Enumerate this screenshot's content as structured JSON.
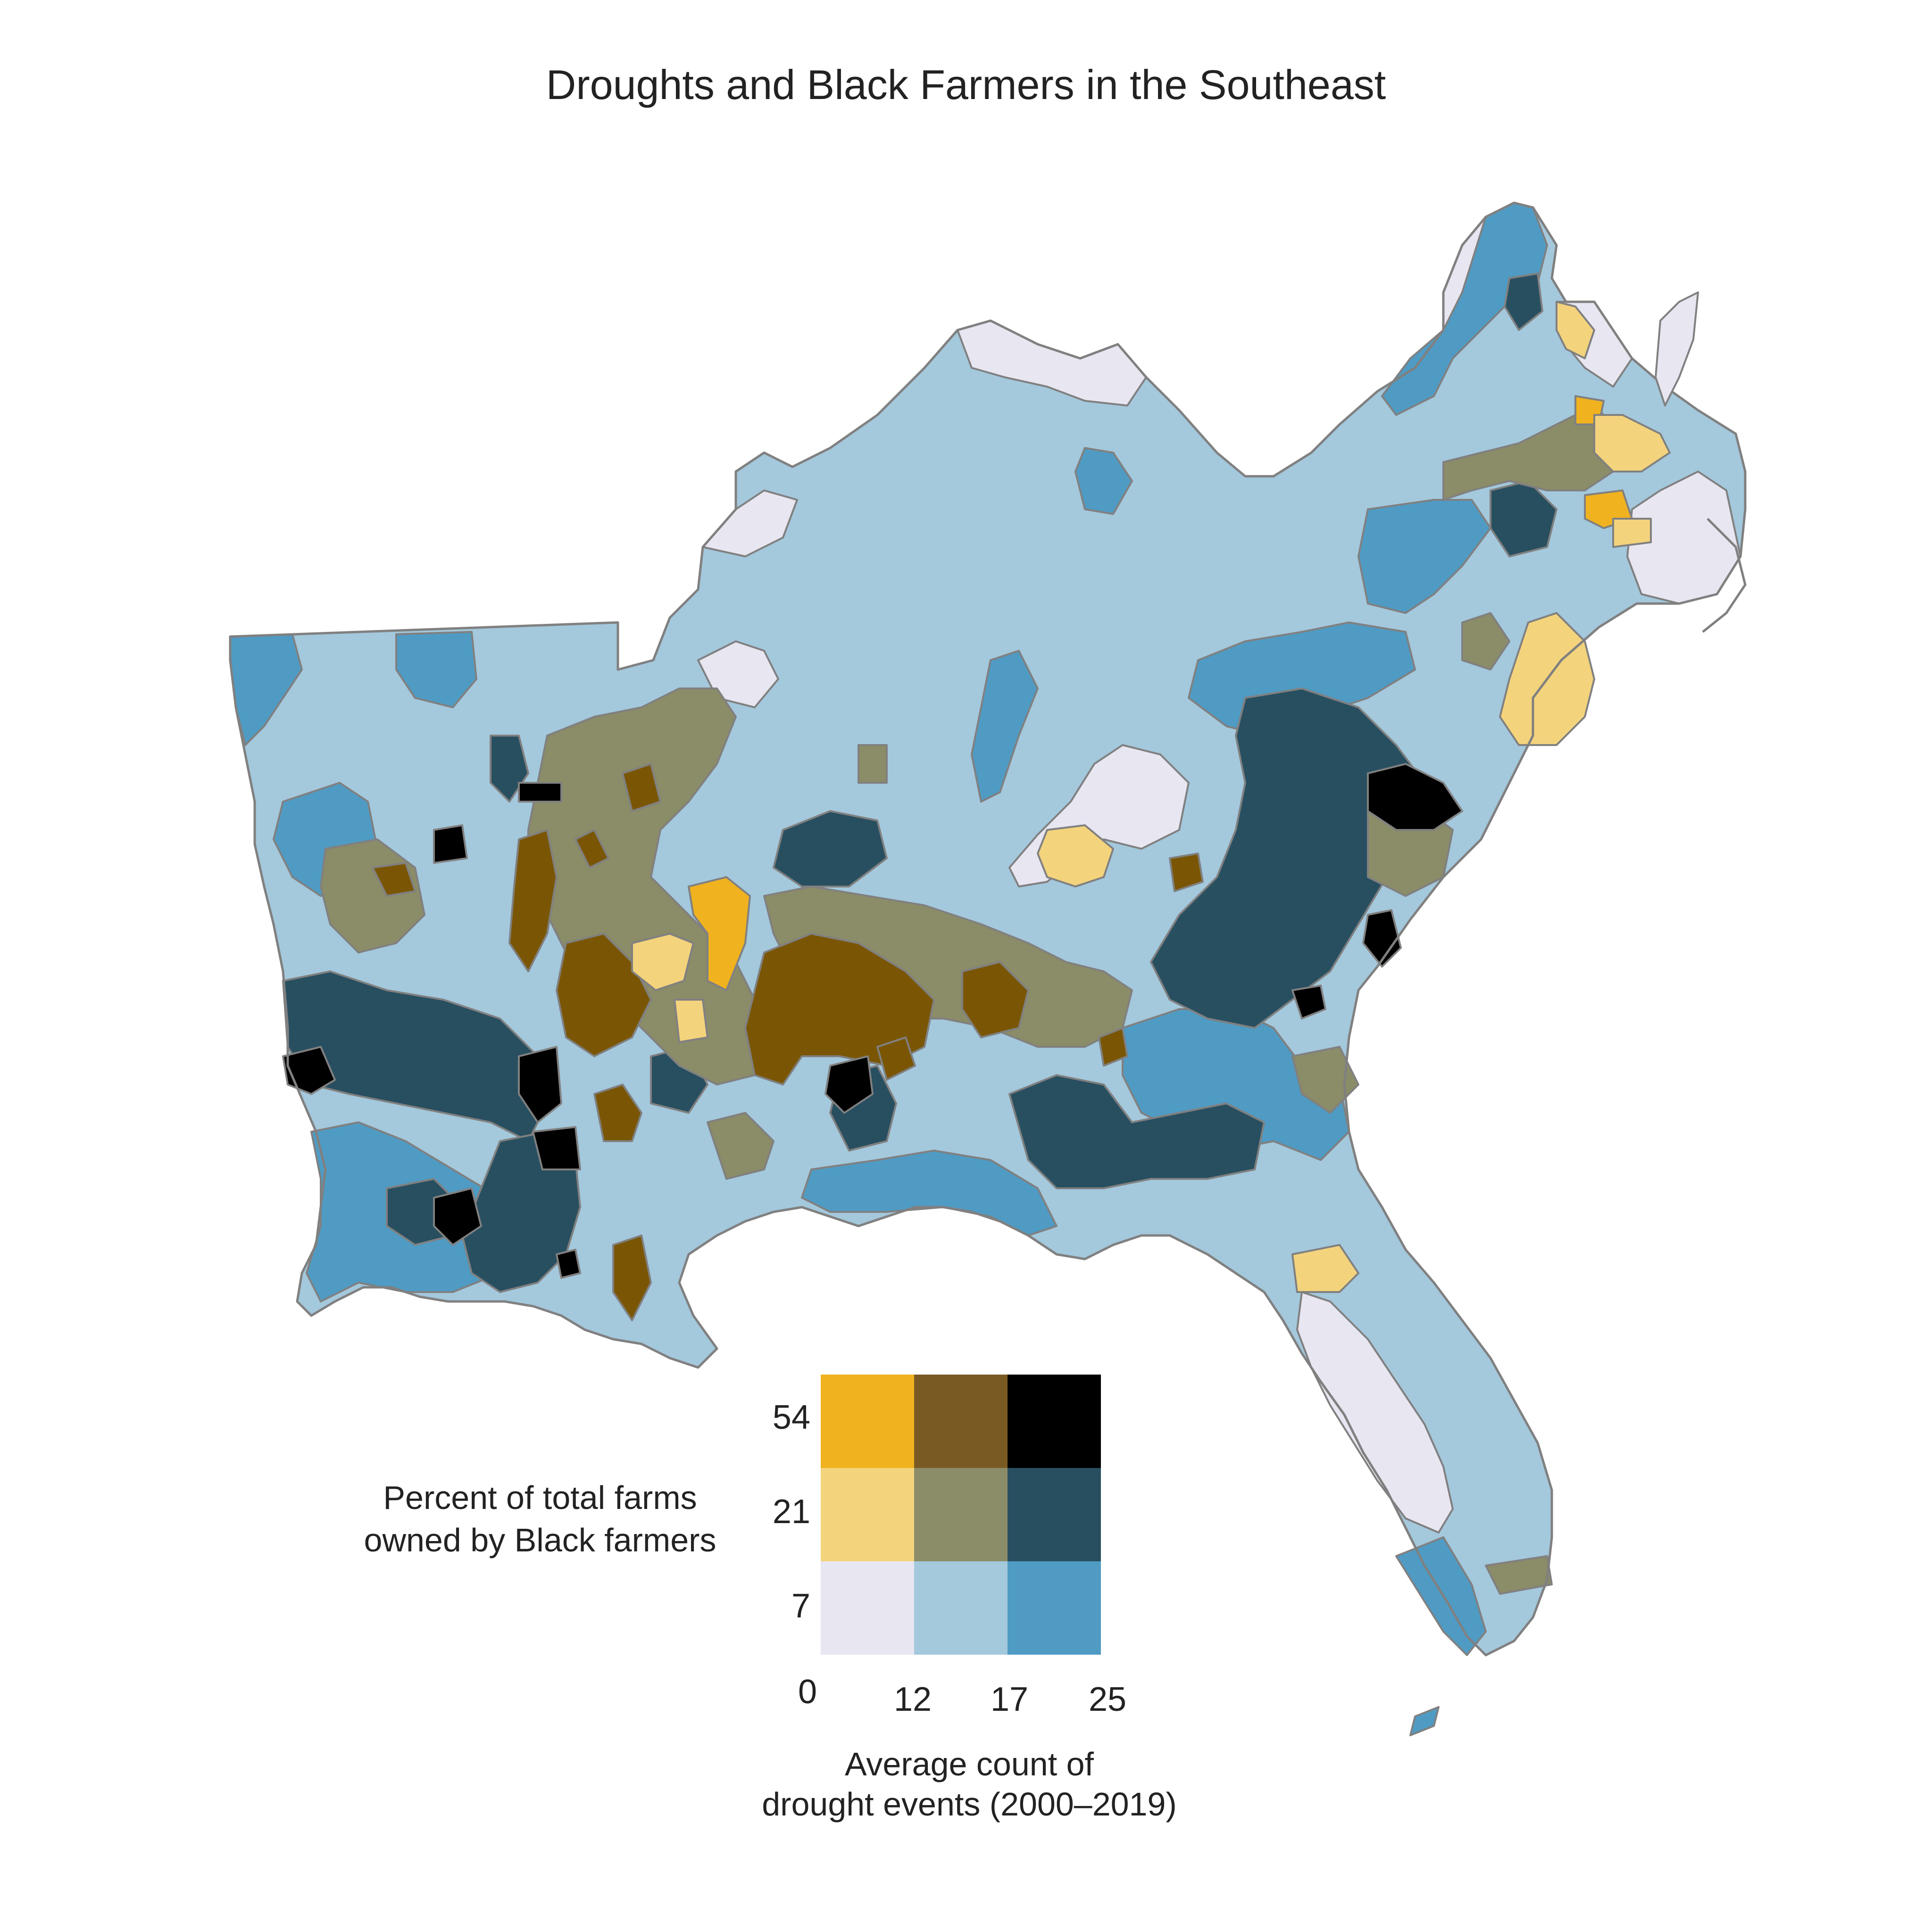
{
  "title": "Droughts and Black Farmers in the Southeast",
  "colors": {
    "bivariate_legend_rows_top_to_bottom": [
      [
        "#f0b21f",
        "#7a5a23",
        "#000000"
      ],
      [
        "#f3d37c",
        "#8b8c68",
        "#284f60"
      ],
      [
        "#e7e6f1",
        "#a4c8dc",
        "#4f9bc4"
      ]
    ],
    "county_stroke": "#808080",
    "map_mid_brown": "#7a5604"
  },
  "legend": {
    "y_axis_label_line1": "Percent of total farms",
    "y_axis_label_line2": "owned by Black farmers",
    "x_axis_label_line1": "Average count of",
    "x_axis_label_line2": "drought events (2000–2019)",
    "y_breaks": [
      "54",
      "21",
      "7"
    ],
    "x_breaks": [
      "0",
      "12",
      "17",
      "25"
    ],
    "y_break_values_percent": [
      0,
      7,
      21,
      54
    ],
    "x_break_values_count": [
      0,
      12,
      17,
      25
    ]
  },
  "map": {
    "region": "Southeast United States",
    "units": "counties",
    "color_variable_1": "Percent of total farms owned by Black farmers",
    "color_variable_2": "Average count of drought events (2000–2019)"
  }
}
